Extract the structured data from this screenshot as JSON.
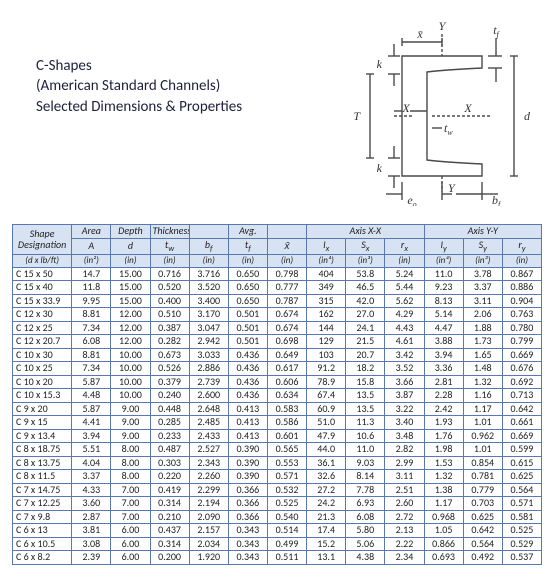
{
  "heading": {
    "line1": "C-Shapes",
    "line2": "(American Standard Channels)",
    "line3": "Selected Dimensions & Properties"
  },
  "diagram": {
    "labels": {
      "Y_top": "Y",
      "Y_bot": "Y",
      "xbar": "x̄",
      "tf": "t_f",
      "k_top": "k",
      "k_bot": "k",
      "T": "T",
      "X_left": "X",
      "X_right": "X",
      "tw": "t_w",
      "d": "d",
      "e0": "e₀",
      "bf": "b_f"
    },
    "stroke": "#4a4a4a",
    "fill": "#ffffff"
  },
  "table": {
    "group_headers": [
      "Shape Designation",
      "Area",
      "Depth",
      "Thickness",
      "",
      "Avg.",
      "",
      "Axis X-X",
      "Axis Y-Y"
    ],
    "group_spans": [
      1,
      1,
      1,
      1,
      1,
      1,
      1,
      3,
      3
    ],
    "sym_row": [
      "",
      "A",
      "d",
      "t_w",
      "b_f",
      "t_f",
      "x̄",
      "I_x",
      "S_x",
      "r_x",
      "I_y",
      "S_y",
      "r_y"
    ],
    "unit_row": [
      "(d x lb/ft)",
      "(in²)",
      "(in)",
      "(in)",
      "(in)",
      "(in)",
      "(in)",
      "(in⁴)",
      "(in³)",
      "(in)",
      "(in⁴)",
      "(in³)",
      "(in)"
    ],
    "rows": [
      [
        "C 15 x 50",
        "14.7",
        "15.00",
        "0.716",
        "3.716",
        "0.650",
        "0.798",
        "404",
        "53.8",
        "5.24",
        "11.0",
        "3.78",
        "0.867"
      ],
      [
        "C 15 x 40",
        "11.8",
        "15.00",
        "0.520",
        "3.520",
        "0.650",
        "0.777",
        "349",
        "46.5",
        "5.44",
        "9.23",
        "3.37",
        "0.886"
      ],
      [
        "C 15 x 33.9",
        "9.95",
        "15.00",
        "0.400",
        "3.400",
        "0.650",
        "0.787",
        "315",
        "42.0",
        "5.62",
        "8.13",
        "3.11",
        "0.904"
      ],
      [
        "C 12 x 30",
        "8.81",
        "12.00",
        "0.510",
        "3.170",
        "0.501",
        "0.674",
        "162",
        "27.0",
        "4.29",
        "5.14",
        "2.06",
        "0.763"
      ],
      [
        "C 12 x 25",
        "7.34",
        "12.00",
        "0.387",
        "3.047",
        "0.501",
        "0.674",
        "144",
        "24.1",
        "4.43",
        "4.47",
        "1.88",
        "0.780"
      ],
      [
        "C 12 x 20.7",
        "6.08",
        "12.00",
        "0.282",
        "2.942",
        "0.501",
        "0.698",
        "129",
        "21.5",
        "4.61",
        "3.88",
        "1.73",
        "0.799"
      ],
      [
        "C 10 x 30",
        "8.81",
        "10.00",
        "0.673",
        "3.033",
        "0.436",
        "0.649",
        "103",
        "20.7",
        "3.42",
        "3.94",
        "1.65",
        "0.669"
      ],
      [
        "C 10 x 25",
        "7.34",
        "10.00",
        "0.526",
        "2.886",
        "0.436",
        "0.617",
        "91.2",
        "18.2",
        "3.52",
        "3.36",
        "1.48",
        "0.676"
      ],
      [
        "C 10 x 20",
        "5.87",
        "10.00",
        "0.379",
        "2.739",
        "0.436",
        "0.606",
        "78.9",
        "15.8",
        "3.66",
        "2.81",
        "1.32",
        "0.692"
      ],
      [
        "C 10 x 15.3",
        "4.48",
        "10.00",
        "0.240",
        "2.600",
        "0.436",
        "0.634",
        "67.4",
        "13.5",
        "3.87",
        "2.28",
        "1.16",
        "0.713"
      ],
      [
        "C 9 x 20",
        "5.87",
        "9.00",
        "0.448",
        "2.648",
        "0.413",
        "0.583",
        "60.9",
        "13.5",
        "3.22",
        "2.42",
        "1.17",
        "0.642"
      ],
      [
        "C 9 x 15",
        "4.41",
        "9.00",
        "0.285",
        "2.485",
        "0.413",
        "0.586",
        "51.0",
        "11.3",
        "3.40",
        "1.93",
        "1.01",
        "0.661"
      ],
      [
        "C 9 x 13.4",
        "3.94",
        "9.00",
        "0.233",
        "2.433",
        "0.413",
        "0.601",
        "47.9",
        "10.6",
        "3.48",
        "1.76",
        "0.962",
        "0.669"
      ],
      [
        "C 8 x 18.75",
        "5.51",
        "8.00",
        "0.487",
        "2.527",
        "0.390",
        "0.565",
        "44.0",
        "11.0",
        "2.82",
        "1.98",
        "1.01",
        "0.599"
      ],
      [
        "C 8 x 13.75",
        "4.04",
        "8.00",
        "0.303",
        "2.343",
        "0.390",
        "0.553",
        "36.1",
        "9.03",
        "2.99",
        "1.53",
        "0.854",
        "0.615"
      ],
      [
        "C 8 x 11.5",
        "3.37",
        "8.00",
        "0.220",
        "2.260",
        "0.390",
        "0.571",
        "32.6",
        "8.14",
        "3.11",
        "1.32",
        "0.781",
        "0.625"
      ],
      [
        "C 7 x 14.75",
        "4.33",
        "7.00",
        "0.419",
        "2.299",
        "0.366",
        "0.532",
        "27.2",
        "7.78",
        "2.51",
        "1.38",
        "0.779",
        "0.564"
      ],
      [
        "C 7 x 12.25",
        "3.60",
        "7.00",
        "0.314",
        "2.194",
        "0.366",
        "0.525",
        "24.2",
        "6.93",
        "2.60",
        "1.17",
        "0.703",
        "0.571"
      ],
      [
        "C 7 x 9.8",
        "2.87",
        "7.00",
        "0.210",
        "2.090",
        "0.366",
        "0.540",
        "21.3",
        "6.08",
        "2.72",
        "0.968",
        "0.625",
        "0.581"
      ],
      [
        "C 6 x 13",
        "3.81",
        "6.00",
        "0.437",
        "2.157",
        "0.343",
        "0.514",
        "17.4",
        "5.80",
        "2.13",
        "1.05",
        "0.642",
        "0.525"
      ],
      [
        "C 6 x 10.5",
        "3.08",
        "6.00",
        "0.314",
        "2.034",
        "0.343",
        "0.499",
        "15.2",
        "5.06",
        "2.22",
        "0.866",
        "0.564",
        "0.529"
      ],
      [
        "C 6 x 8.2",
        "2.39",
        "6.00",
        "0.200",
        "1.920",
        "0.343",
        "0.511",
        "13.1",
        "4.38",
        "2.34",
        "0.693",
        "0.492",
        "0.537"
      ]
    ],
    "header_bg": "#d7e2f2",
    "border_color": "#5a78b0"
  }
}
